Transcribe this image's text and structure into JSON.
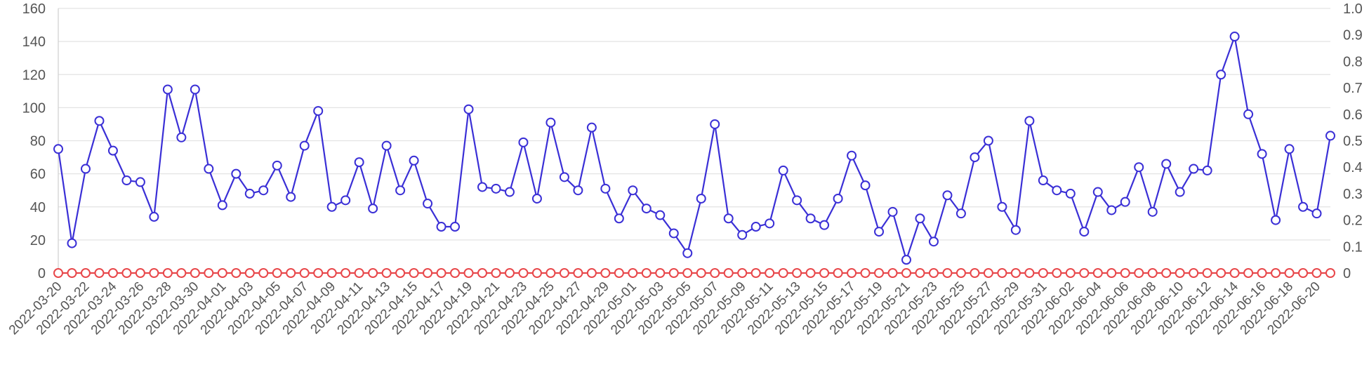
{
  "chart_data": {
    "type": "line",
    "x": [
      "2022-03-20",
      "2022-03-21",
      "2022-03-22",
      "2022-03-23",
      "2022-03-24",
      "2022-03-25",
      "2022-03-26",
      "2022-03-27",
      "2022-03-28",
      "2022-03-29",
      "2022-03-30",
      "2022-03-31",
      "2022-04-01",
      "2022-04-02",
      "2022-04-03",
      "2022-04-04",
      "2022-04-05",
      "2022-04-06",
      "2022-04-07",
      "2022-04-08",
      "2022-04-09",
      "2022-04-10",
      "2022-04-11",
      "2022-04-12",
      "2022-04-13",
      "2022-04-14",
      "2022-04-15",
      "2022-04-16",
      "2022-04-17",
      "2022-04-18",
      "2022-04-19",
      "2022-04-20",
      "2022-04-21",
      "2022-04-22",
      "2022-04-23",
      "2022-04-24",
      "2022-04-25",
      "2022-04-26",
      "2022-04-27",
      "2022-04-28",
      "2022-04-29",
      "2022-04-30",
      "2022-05-01",
      "2022-05-02",
      "2022-05-03",
      "2022-05-04",
      "2022-05-05",
      "2022-05-06",
      "2022-05-07",
      "2022-05-08",
      "2022-05-09",
      "2022-05-10",
      "2022-05-11",
      "2022-05-12",
      "2022-05-13",
      "2022-05-14",
      "2022-05-15",
      "2022-05-16",
      "2022-05-17",
      "2022-05-18",
      "2022-05-19",
      "2022-05-20",
      "2022-05-21",
      "2022-05-22",
      "2022-05-23",
      "2022-05-24",
      "2022-05-25",
      "2022-05-26",
      "2022-05-27",
      "2022-05-28",
      "2022-05-29",
      "2022-05-30",
      "2022-05-31",
      "2022-06-01",
      "2022-06-02",
      "2022-06-03",
      "2022-06-04",
      "2022-06-05",
      "2022-06-06",
      "2022-06-07",
      "2022-06-08",
      "2022-06-09",
      "2022-06-10",
      "2022-06-11",
      "2022-06-12",
      "2022-06-13",
      "2022-06-14",
      "2022-06-15",
      "2022-06-16",
      "2022-06-17",
      "2022-06-18",
      "2022-06-19",
      "2022-06-20",
      "2022-06-21"
    ],
    "series": [
      {
        "axis": "left",
        "color": "#3a2fd6",
        "values": [
          75,
          18,
          63,
          92,
          74,
          56,
          55,
          34,
          111,
          82,
          111,
          63,
          41,
          60,
          48,
          50,
          65,
          46,
          77,
          98,
          40,
          44,
          67,
          39,
          77,
          50,
          68,
          42,
          28,
          28,
          99,
          52,
          51,
          49,
          79,
          45,
          91,
          58,
          50,
          88,
          51,
          33,
          50,
          39,
          35,
          24,
          12,
          45,
          90,
          33,
          23,
          28,
          30,
          62,
          44,
          33,
          29,
          45,
          71,
          53,
          25,
          37,
          8,
          33,
          19,
          47,
          36,
          70,
          80,
          40,
          26,
          92,
          56,
          50,
          48,
          25,
          49,
          38,
          43,
          64,
          37,
          66,
          49,
          63,
          62,
          120,
          143,
          96,
          72,
          32,
          75,
          40,
          36,
          83
        ]
      },
      {
        "axis": "right",
        "color": "#e8474a",
        "values": [
          0,
          0,
          0,
          0,
          0,
          0,
          0,
          0,
          0,
          0,
          0,
          0,
          0,
          0,
          0,
          0,
          0,
          0,
          0,
          0,
          0,
          0,
          0,
          0,
          0,
          0,
          0,
          0,
          0,
          0,
          0,
          0,
          0,
          0,
          0,
          0,
          0,
          0,
          0,
          0,
          0,
          0,
          0,
          0,
          0,
          0,
          0,
          0,
          0,
          0,
          0,
          0,
          0,
          0,
          0,
          0,
          0,
          0,
          0,
          0,
          0,
          0,
          0,
          0,
          0,
          0,
          0,
          0,
          0,
          0,
          0,
          0,
          0,
          0,
          0,
          0,
          0,
          0,
          0,
          0,
          0,
          0,
          0,
          0,
          0,
          0,
          0,
          0,
          0,
          0,
          0,
          0,
          0,
          0
        ]
      }
    ],
    "x_tick_labels": [
      "2022-03-20",
      "2022-03-22",
      "2022-03-24",
      "2022-03-26",
      "2022-03-28",
      "2022-03-30",
      "2022-04-01",
      "2022-04-03",
      "2022-04-05",
      "2022-04-07",
      "2022-04-09",
      "2022-04-11",
      "2022-04-13",
      "2022-04-15",
      "2022-04-17",
      "2022-04-19",
      "2022-04-21",
      "2022-04-23",
      "2022-04-25",
      "2022-04-27",
      "2022-04-29",
      "2022-05-01",
      "2022-05-03",
      "2022-05-05",
      "2022-05-07",
      "2022-05-09",
      "2022-05-11",
      "2022-05-13",
      "2022-05-15",
      "2022-05-17",
      "2022-05-19",
      "2022-05-21",
      "2022-05-23",
      "2022-05-25",
      "2022-05-27",
      "2022-05-29",
      "2022-05-31",
      "2022-06-02",
      "2022-06-04",
      "2022-06-06",
      "2022-06-08",
      "2022-06-10",
      "2022-06-12",
      "2022-06-14",
      "2022-06-16",
      "2022-06-18",
      "2022-06-20"
    ],
    "y_left": {
      "ylim": [
        0,
        160
      ],
      "ticks": [
        "0",
        "20",
        "40",
        "60",
        "80",
        "100",
        "120",
        "140",
        "160"
      ]
    },
    "y_right": {
      "ylim": [
        0,
        1.0
      ],
      "ticks": [
        "0",
        "0.1",
        "0.2",
        "0.3",
        "0.4",
        "0.5",
        "0.6",
        "0.7",
        "0.8",
        "0.9",
        "1.0"
      ]
    },
    "grid": true,
    "title": "",
    "xlabel": "",
    "ylabel": ""
  }
}
